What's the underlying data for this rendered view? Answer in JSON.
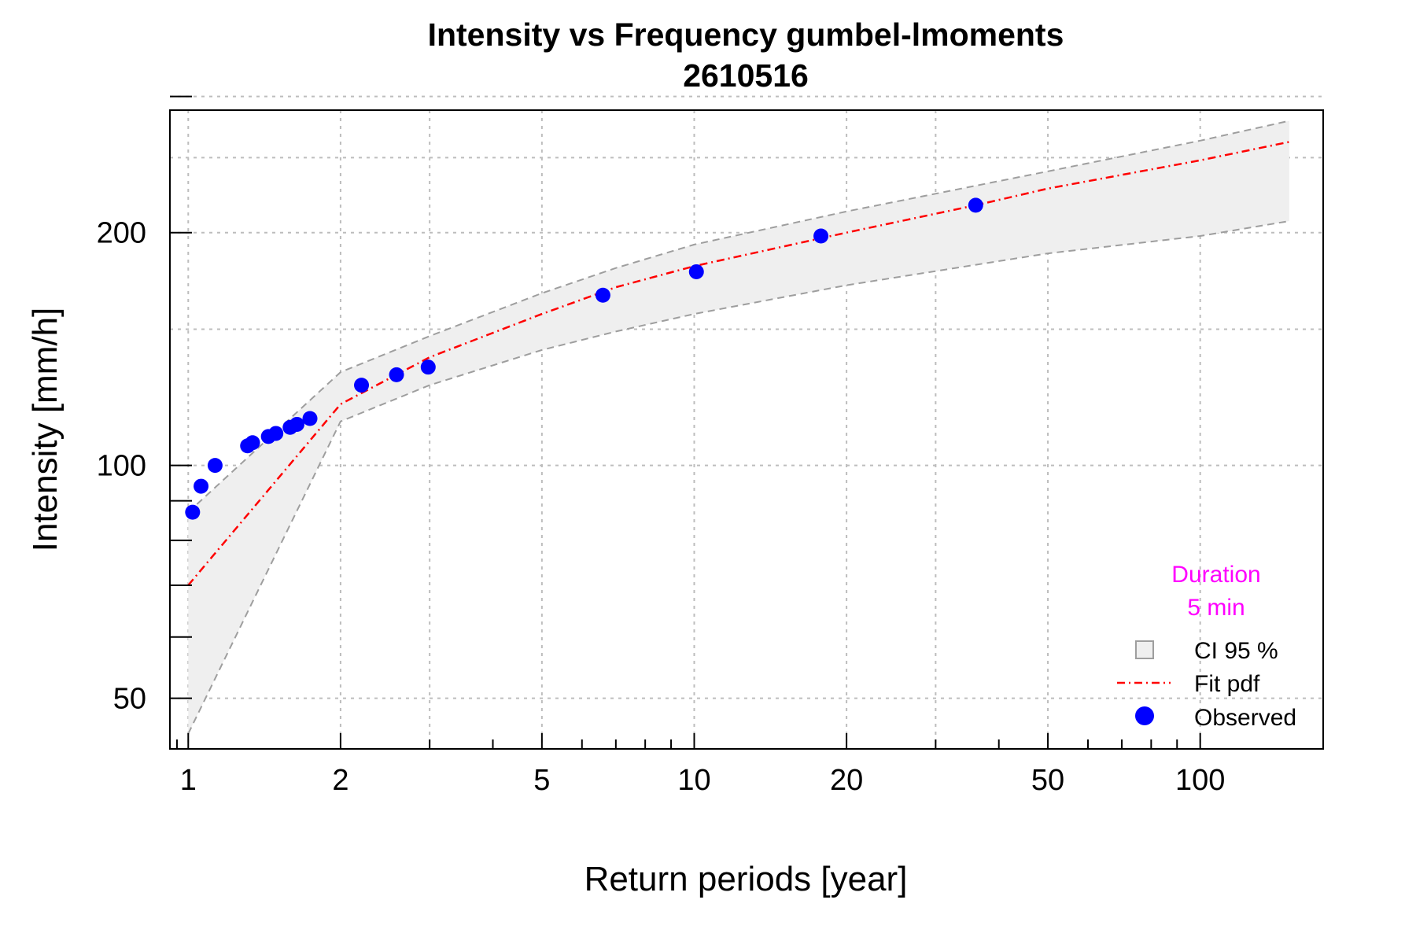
{
  "chart_data": {
    "type": "line",
    "title": "Intensity vs Frequency gumbel-lmoments",
    "subtitle": "2610516",
    "xlabel": "Return periods [year]",
    "ylabel": "Intensity [mm/h]",
    "x_scale": "log",
    "y_scale": "log",
    "xlim": [
      0.92,
      175
    ],
    "ylim": [
      43,
      288
    ],
    "grid": true,
    "x_ticks": [
      1,
      2,
      5,
      10,
      20,
      50,
      100
    ],
    "x_tick_labels": [
      "1",
      "2",
      "5",
      "10",
      "20",
      "50",
      "100"
    ],
    "x_minor_ticks": [
      0.95,
      3,
      4,
      6,
      7,
      8,
      9,
      30,
      40,
      60,
      70,
      80,
      90
    ],
    "x_grid": [
      1,
      2,
      3,
      5,
      10,
      20,
      30,
      50,
      100
    ],
    "y_ticks": [
      50,
      100,
      200
    ],
    "y_tick_labels": [
      "50",
      "100",
      "200"
    ],
    "y_minor_ticks": [
      60,
      70,
      80,
      90,
      300
    ],
    "y_grid": [
      50,
      100,
      150,
      200,
      250,
      300
    ],
    "series": [
      {
        "name": "Fit pdf",
        "style": "dash-dot",
        "color": "#ff0000",
        "x": [
          1.0,
          2.0,
          3.0,
          5.0,
          7.0,
          10.0,
          20.0,
          36.0,
          50.0,
          100.0,
          150.0
        ],
        "y": [
          70,
          120,
          138,
          157,
          170,
          181,
          200,
          217,
          228,
          248,
          262
        ]
      },
      {
        "name": "CI 95 % upper",
        "style": "dashed",
        "color": "#9e9e9e",
        "x": [
          1.0,
          2.0,
          3.0,
          5.0,
          7.0,
          10.0,
          20.0,
          50.0,
          100.0,
          150.0
        ],
        "y": [
          87,
          132,
          147,
          167,
          180,
          193,
          213,
          240,
          263,
          279
        ]
      },
      {
        "name": "CI 95 % lower",
        "style": "dashed",
        "color": "#9e9e9e",
        "x": [
          1.0,
          2.0,
          3.0,
          5.0,
          7.0,
          10.0,
          20.0,
          50.0,
          100.0,
          150.0
        ],
        "y": [
          45,
          114,
          127,
          141,
          149,
          157,
          171,
          188,
          198,
          207
        ]
      },
      {
        "name": "Observed",
        "style": "points",
        "color": "#0000ff",
        "x": [
          1.02,
          1.06,
          1.13,
          1.31,
          1.34,
          1.44,
          1.49,
          1.59,
          1.64,
          1.74,
          2.2,
          2.58,
          2.98,
          6.6,
          10.1,
          17.8,
          36.0
        ],
        "y": [
          87,
          94,
          100,
          106,
          107,
          109,
          110,
          112,
          113,
          115,
          127,
          131,
          134,
          166,
          178,
          198,
          217
        ]
      }
    ],
    "legend": {
      "position": "bottom-right",
      "title_line1": "Duration",
      "title_line2": "5 min",
      "title_color": "#ff00ff",
      "items": [
        {
          "label": "CI 95 %",
          "kind": "box"
        },
        {
          "label": "Fit pdf",
          "kind": "line"
        },
        {
          "label": "Observed",
          "kind": "point"
        }
      ]
    },
    "colors": {
      "fit": "#ff0000",
      "observed": "#0000ff",
      "ci_fill": "#efefef",
      "ci_line": "#9e9e9e",
      "legend_title": "#ff00ff"
    }
  }
}
